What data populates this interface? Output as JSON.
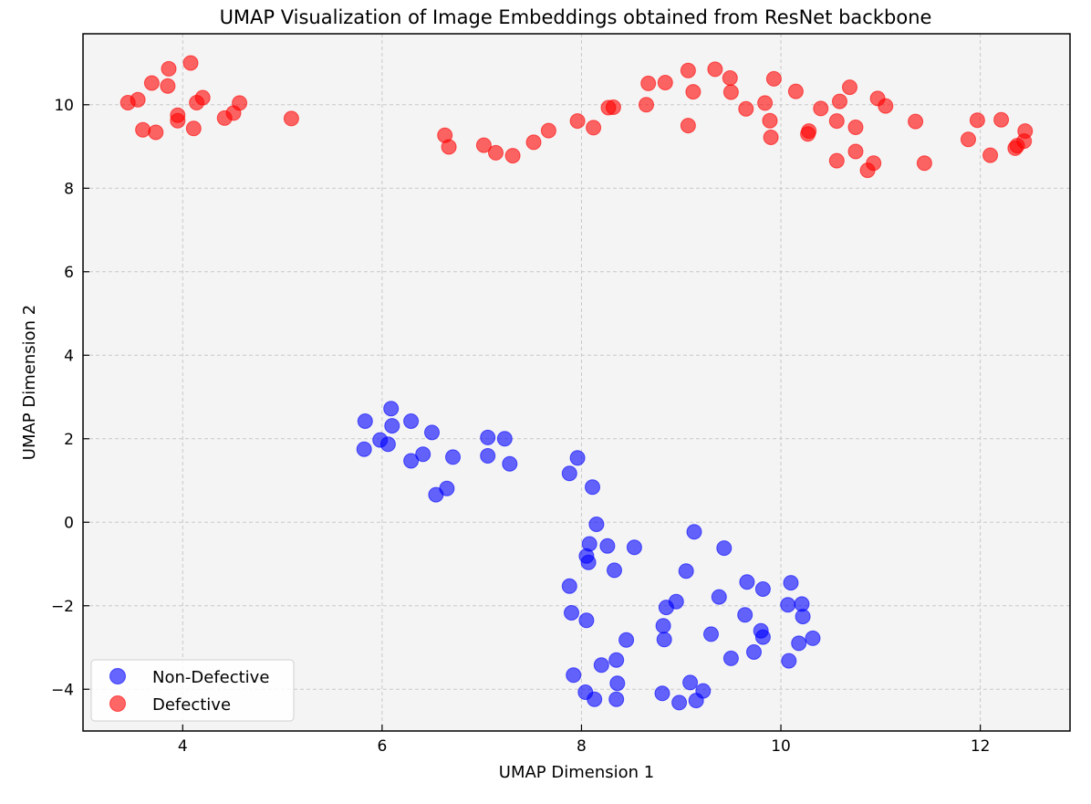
{
  "chart_data": {
    "type": "scatter",
    "title": "UMAP Visualization of Image Embeddings obtained from ResNet backbone",
    "xlabel": "UMAP Dimension 1",
    "ylabel": "UMAP Dimension 2",
    "xlim": [
      3.0,
      12.9
    ],
    "ylim": [
      -5.0,
      11.7
    ],
    "grid": true,
    "legend_position": "lower-left",
    "xticks": [
      4,
      6,
      8,
      10,
      12
    ],
    "yticks": [
      -4,
      -2,
      0,
      2,
      4,
      6,
      8,
      10
    ],
    "xtick_labels": [
      "4",
      "6",
      "8",
      "10",
      "12"
    ],
    "ytick_labels": [
      "−4",
      "−2",
      "0",
      "2",
      "4",
      "6",
      "8",
      "10"
    ],
    "series": [
      {
        "name": "Non-Defective",
        "color": "#0000ff",
        "points": [
          [
            5.83,
            2.42
          ],
          [
            5.82,
            1.75
          ],
          [
            5.98,
            1.97
          ],
          [
            6.06,
            1.87
          ],
          [
            6.09,
            2.72
          ],
          [
            6.1,
            2.31
          ],
          [
            6.29,
            2.42
          ],
          [
            6.29,
            1.47
          ],
          [
            6.41,
            1.63
          ],
          [
            6.5,
            2.15
          ],
          [
            6.54,
            0.66
          ],
          [
            6.65,
            0.81
          ],
          [
            6.71,
            1.56
          ],
          [
            7.06,
            2.03
          ],
          [
            7.06,
            1.59
          ],
          [
            7.23,
            2.0
          ],
          [
            7.28,
            1.4
          ],
          [
            7.88,
            1.17
          ],
          [
            7.96,
            1.54
          ],
          [
            8.11,
            0.84
          ],
          [
            8.15,
            -0.05
          ],
          [
            8.08,
            -0.52
          ],
          [
            8.26,
            -0.57
          ],
          [
            8.53,
            -0.6
          ],
          [
            8.05,
            -0.81
          ],
          [
            8.07,
            -0.96
          ],
          [
            8.33,
            -1.15
          ],
          [
            7.88,
            -1.53
          ],
          [
            7.9,
            -2.17
          ],
          [
            8.05,
            -2.35
          ],
          [
            8.45,
            -2.82
          ],
          [
            8.2,
            -3.42
          ],
          [
            8.35,
            -3.3
          ],
          [
            7.92,
            -3.66
          ],
          [
            8.36,
            -3.86
          ],
          [
            8.04,
            -4.07
          ],
          [
            8.13,
            -4.24
          ],
          [
            8.35,
            -4.24
          ],
          [
            8.81,
            -4.1
          ],
          [
            8.82,
            -2.48
          ],
          [
            8.85,
            -2.04
          ],
          [
            8.95,
            -1.9
          ],
          [
            8.83,
            -2.81
          ],
          [
            9.05,
            -1.17
          ],
          [
            9.13,
            -0.23
          ],
          [
            9.09,
            -3.84
          ],
          [
            9.22,
            -4.04
          ],
          [
            9.15,
            -4.27
          ],
          [
            8.98,
            -4.32
          ],
          [
            9.3,
            -2.68
          ],
          [
            9.38,
            -1.79
          ],
          [
            9.43,
            -0.62
          ],
          [
            9.5,
            -3.26
          ],
          [
            9.64,
            -2.22
          ],
          [
            9.66,
            -1.43
          ],
          [
            9.73,
            -3.11
          ],
          [
            9.8,
            -2.6
          ],
          [
            9.82,
            -2.75
          ],
          [
            9.82,
            -1.6
          ],
          [
            10.1,
            -1.45
          ],
          [
            10.07,
            -1.98
          ],
          [
            10.21,
            -1.96
          ],
          [
            10.22,
            -2.26
          ],
          [
            10.18,
            -2.9
          ],
          [
            10.32,
            -2.78
          ],
          [
            10.08,
            -3.32
          ]
        ]
      },
      {
        "name": "Defective",
        "color": "#ff0000",
        "points": [
          [
            3.45,
            10.05
          ],
          [
            3.55,
            10.12
          ],
          [
            3.6,
            9.4
          ],
          [
            3.69,
            10.52
          ],
          [
            3.73,
            9.34
          ],
          [
            3.85,
            10.45
          ],
          [
            3.86,
            10.86
          ],
          [
            3.95,
            9.75
          ],
          [
            3.95,
            9.62
          ],
          [
            4.08,
            11.0
          ],
          [
            4.11,
            9.43
          ],
          [
            4.14,
            10.05
          ],
          [
            4.2,
            10.17
          ],
          [
            4.42,
            9.68
          ],
          [
            4.51,
            9.8
          ],
          [
            4.57,
            10.04
          ],
          [
            5.09,
            9.67
          ],
          [
            6.63,
            9.27
          ],
          [
            6.67,
            8.99
          ],
          [
            7.02,
            9.03
          ],
          [
            7.14,
            8.85
          ],
          [
            7.31,
            8.78
          ],
          [
            7.52,
            9.1
          ],
          [
            7.67,
            9.38
          ],
          [
            7.96,
            9.61
          ],
          [
            8.12,
            9.45
          ],
          [
            8.27,
            9.93
          ],
          [
            8.32,
            9.94
          ],
          [
            8.65,
            10.0
          ],
          [
            8.67,
            10.51
          ],
          [
            8.84,
            10.53
          ],
          [
            9.07,
            10.82
          ],
          [
            9.07,
            9.5
          ],
          [
            9.12,
            10.31
          ],
          [
            9.34,
            10.85
          ],
          [
            9.49,
            10.64
          ],
          [
            9.5,
            10.3
          ],
          [
            9.65,
            9.9
          ],
          [
            9.84,
            10.04
          ],
          [
            9.89,
            9.62
          ],
          [
            9.9,
            9.22
          ],
          [
            9.93,
            10.62
          ],
          [
            10.15,
            10.32
          ],
          [
            10.27,
            9.3
          ],
          [
            10.28,
            9.37
          ],
          [
            10.4,
            9.91
          ],
          [
            10.56,
            8.66
          ],
          [
            10.56,
            9.61
          ],
          [
            10.59,
            10.08
          ],
          [
            10.69,
            10.42
          ],
          [
            10.75,
            8.88
          ],
          [
            10.75,
            9.46
          ],
          [
            10.87,
            8.43
          ],
          [
            10.93,
            8.6
          ],
          [
            10.97,
            10.15
          ],
          [
            11.05,
            9.97
          ],
          [
            11.35,
            9.6
          ],
          [
            11.44,
            8.6
          ],
          [
            11.88,
            9.17
          ],
          [
            11.97,
            9.63
          ],
          [
            12.1,
            8.79
          ],
          [
            12.21,
            9.64
          ],
          [
            12.35,
            8.96
          ],
          [
            12.37,
            9.02
          ],
          [
            12.44,
            9.13
          ],
          [
            12.45,
            9.37
          ]
        ]
      }
    ]
  }
}
